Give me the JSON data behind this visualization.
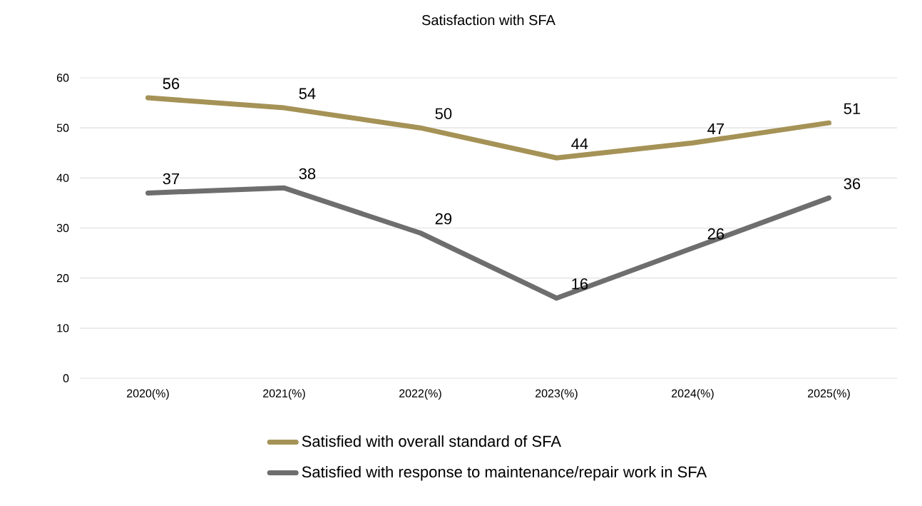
{
  "chart_data": {
    "type": "line",
    "title": "Satisfaction with SFA",
    "categories": [
      "2020(%)",
      "2021(%)",
      "2022(%)",
      "2023(%)",
      "2024(%)",
      "2025(%)"
    ],
    "series": [
      {
        "name": "Satisfied with overall standard of SFA",
        "color": "#a59256",
        "values": [
          56,
          54,
          50,
          44,
          47,
          51
        ]
      },
      {
        "name": "Satisfied with response to maintenance/repair work in SFA",
        "color": "#6e6e6e",
        "values": [
          37,
          38,
          29,
          16,
          26,
          36
        ]
      }
    ],
    "ylim": [
      0,
      60
    ],
    "yticks": [
      0,
      10,
      20,
      30,
      40,
      50,
      60
    ],
    "grid": "y",
    "legend": "bottom",
    "data_labels": true,
    "marker": "none",
    "line_style": "solid"
  }
}
